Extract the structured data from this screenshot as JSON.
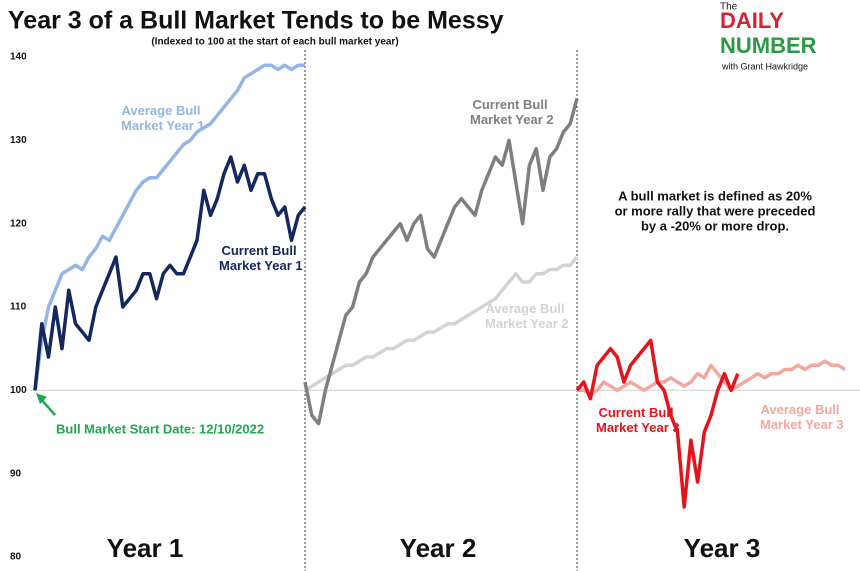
{
  "title": "Year 3 of a Bull Market Tends to be Messy",
  "subtitle": "(Indexed to 100 at the start of each bull market year)",
  "annotation": "Bull Market Start Date: 12/10/2022",
  "note": [
    "A bull market is defined as 20%",
    "or more rally that were preceded",
    "by a -20% or more drop."
  ],
  "logo": {
    "pre": "The",
    "name1": "DAILY",
    "name2": "NUMBER",
    "byline": "with Grant Hawkridge"
  },
  "chart_data": [
    {
      "type": "line",
      "xlabel": "Year 1",
      "ylim": [
        80,
        140
      ],
      "yticks": [
        80,
        90,
        100,
        110,
        120,
        130,
        140
      ],
      "hline": 100,
      "series": [
        {
          "name": "Average Bull Market Year 1",
          "color": "#93b6e2",
          "values": [
            100,
            106,
            110,
            112,
            114,
            114.5,
            115,
            114.5,
            116,
            117,
            118.5,
            118,
            119.5,
            121,
            122.5,
            124,
            125,
            125.5,
            125.5,
            126.5,
            127.5,
            128.5,
            129.5,
            130,
            131,
            131.5,
            132,
            133,
            134,
            135,
            136,
            137.5,
            138,
            138.5,
            139,
            139,
            138.5,
            139,
            138.5,
            139,
            139
          ]
        },
        {
          "name": "Current Bull Market Year 1",
          "color": "#14285e",
          "values": [
            100,
            108,
            104,
            110,
            105,
            112,
            108,
            107,
            106,
            110,
            112,
            114,
            116,
            110,
            111,
            112,
            114,
            114,
            111,
            114,
            115,
            114,
            114,
            116,
            118,
            124,
            121,
            123,
            126,
            128,
            125,
            127,
            124,
            126,
            126,
            123,
            121,
            122,
            118,
            121,
            122
          ]
        }
      ]
    },
    {
      "type": "line",
      "xlabel": "Year 2",
      "ylim": [
        80,
        140
      ],
      "hline": 100,
      "series": [
        {
          "name": "Average Bull Market Year 2",
          "color": "#d3d3d3",
          "values": [
            100,
            100.5,
            101,
            101.5,
            102,
            102.5,
            103,
            103,
            103.5,
            104,
            104,
            104.5,
            105,
            105,
            105.5,
            106,
            106,
            106.5,
            107,
            107,
            107.5,
            108,
            108,
            108.5,
            109,
            109.5,
            110,
            110.5,
            111,
            112,
            113,
            114,
            113,
            113,
            114,
            114,
            114.5,
            114.5,
            115,
            115,
            116
          ]
        },
        {
          "name": "Current Bull Market Year 2",
          "color": "#7f7f7f",
          "values": [
            101,
            97,
            96,
            100,
            103,
            106,
            109,
            110,
            113,
            114,
            116,
            117,
            118,
            119,
            120,
            118,
            120,
            121,
            117,
            116,
            118,
            120,
            122,
            123,
            122,
            121,
            124,
            126,
            128,
            127,
            130,
            125,
            120,
            127,
            129,
            124,
            128,
            129,
            131,
            132,
            135
          ]
        }
      ]
    },
    {
      "type": "line",
      "xlabel": "Year 3",
      "ylim": [
        80,
        140
      ],
      "hline": 100,
      "series": [
        {
          "name": "Average Bull Market Year 3",
          "color": "#f2a79f",
          "values": [
            100,
            100,
            99.5,
            100,
            101,
            100.5,
            100,
            100.5,
            101,
            100.5,
            100,
            100.5,
            101,
            101,
            101.5,
            101,
            100.5,
            101,
            102,
            101.5,
            103,
            102,
            101,
            100,
            100.5,
            101,
            101.5,
            102,
            101.5,
            102,
            102,
            102.5,
            102.5,
            103,
            102.5,
            103,
            103,
            103.5,
            103,
            103,
            102.5
          ]
        },
        {
          "name": "Current Bull Market Year 3",
          "color": "#e5141b",
          "values": [
            100,
            101,
            99,
            103,
            104,
            105,
            104,
            101,
            103,
            104,
            105,
            106,
            101,
            100,
            97,
            95,
            86,
            94,
            89,
            95,
            97,
            100,
            102,
            100,
            102,
            null,
            null,
            null,
            null,
            null,
            null,
            null,
            null,
            null,
            null,
            null,
            null,
            null,
            null,
            null,
            null
          ]
        }
      ]
    }
  ]
}
